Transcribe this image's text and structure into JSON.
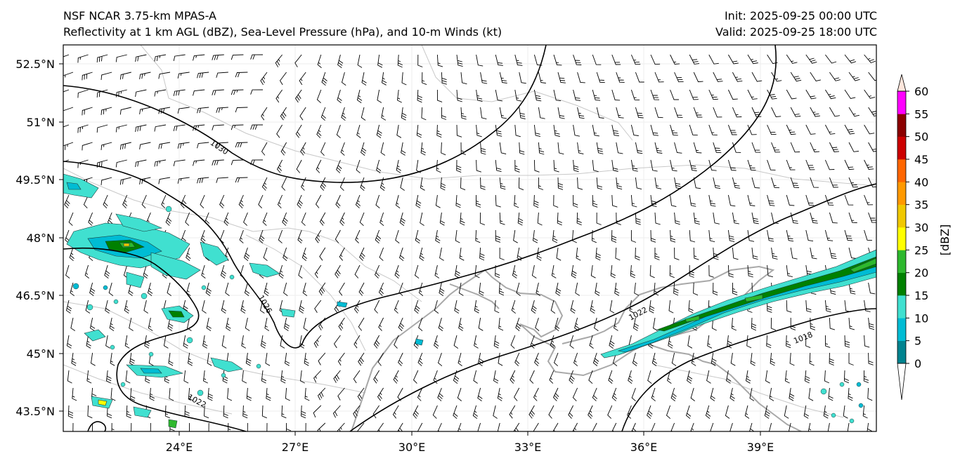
{
  "header": {
    "left_line1": "NSF NCAR 3.75-km MPAS-A",
    "left_line2": "Reflectivity at 1 km AGL (dBZ), Sea-Level Pressure (hPa), and 10-m Winds (kt)",
    "right_line1": "Init: 2025-09-25 00:00 UTC",
    "right_line2": "Valid: 2025-09-25 18:00 UTC"
  },
  "map": {
    "lon_range": [
      21,
      42
    ],
    "lat_range": [
      43.0,
      53.0
    ],
    "x_ticks": [
      "24°E",
      "27°E",
      "30°E",
      "33°E",
      "36°E",
      "39°E"
    ],
    "y_ticks": [
      "52.5°N",
      "51°N",
      "49.5°N",
      "48°N",
      "46.5°N",
      "45°N",
      "43.5°N"
    ],
    "isobar_labels": [
      "1030",
      "1026",
      "1022",
      "1022",
      "1018"
    ],
    "colors": {
      "coastline": "#a8a8a8",
      "border": "#c8c8c8",
      "isobar": "#000000",
      "barb": "#000000"
    }
  },
  "colorbar": {
    "label": "[dBZ]",
    "tick_labels": [
      "0",
      "5",
      "10",
      "15",
      "20",
      "25",
      "30",
      "35",
      "40",
      "45",
      "50",
      "55",
      "60"
    ],
    "bins": [
      {
        "from": 0,
        "to": 5,
        "color": "#00838f"
      },
      {
        "from": 5,
        "to": 10,
        "color": "#00bcd4"
      },
      {
        "from": 10,
        "to": 15,
        "color": "#40e0d0"
      },
      {
        "from": 15,
        "to": 20,
        "color": "#008000"
      },
      {
        "from": 20,
        "to": 25,
        "color": "#2eb82e"
      },
      {
        "from": 25,
        "to": 30,
        "color": "#ffff00"
      },
      {
        "from": 30,
        "to": 35,
        "color": "#f0c800"
      },
      {
        "from": 35,
        "to": 40,
        "color": "#ff9900"
      },
      {
        "from": 40,
        "to": 45,
        "color": "#ff6600"
      },
      {
        "from": 45,
        "to": 50,
        "color": "#cc0000"
      },
      {
        "from": 50,
        "to": 55,
        "color": "#8b0000"
      },
      {
        "from": 55,
        "to": 60,
        "color": "#ff00ff"
      }
    ],
    "over_color": "#ffe6dc",
    "under_color": "#ffffff"
  }
}
